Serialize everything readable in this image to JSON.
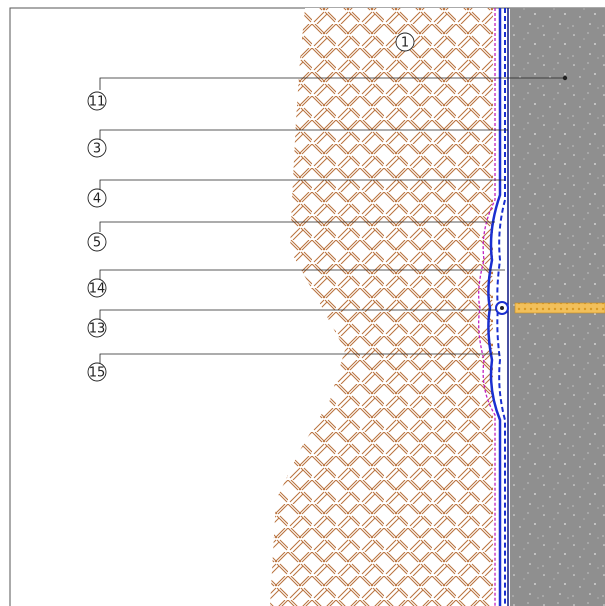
{
  "callouts": [
    {
      "label": "1"
    },
    {
      "label": "11"
    },
    {
      "label": "3"
    },
    {
      "label": "4"
    },
    {
      "label": "5"
    },
    {
      "label": "14"
    },
    {
      "label": "13"
    },
    {
      "label": "15"
    }
  ]
}
